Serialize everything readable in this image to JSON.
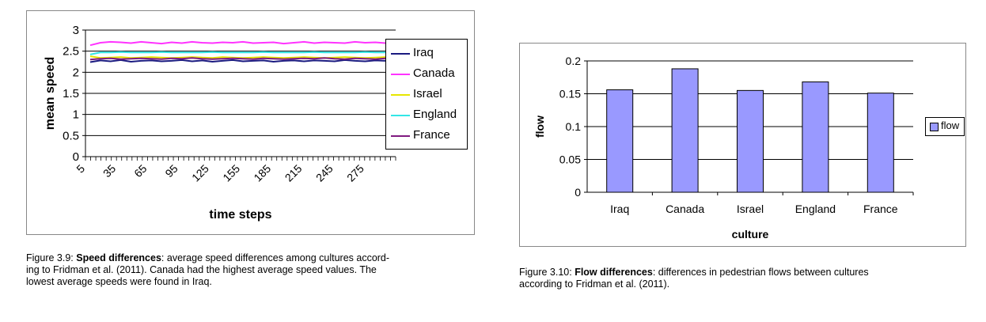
{
  "speed_caption": {
    "prefix": "Figure 3.9: ",
    "bold": "Speed differences",
    "line1": ": average speed differences among cultures accord-",
    "line2": "ing to Fridman et al. (2011).  Canada had the highest average speed values.  The",
    "line3": "lowest average speeds were found in Iraq."
  },
  "flow_caption": {
    "prefix": "Figure 3.10: ",
    "bold": "Flow differences",
    "line1": ":  differences in pedestrian flows between cultures",
    "line2": "according to Fridman et al. (2011)."
  },
  "chart_data": [
    {
      "type": "line",
      "title": "",
      "xlabel": "time steps",
      "ylabel": "mean speed",
      "ylim": [
        0,
        3
      ],
      "yticks": [
        "0",
        "0.5",
        "1",
        "1.5",
        "2",
        "2.5",
        "3"
      ],
      "xticks": [
        "5",
        "35",
        "65",
        "95",
        "125",
        "155",
        "185",
        "215",
        "245",
        "275"
      ],
      "xrange": [
        5,
        305
      ],
      "grid": "horizontal",
      "legend": "right",
      "series": [
        {
          "name": "Iraq",
          "color": "#1a1a80",
          "approx_mean": 2.27,
          "values": [
            2.24,
            2.28,
            2.26,
            2.29,
            2.25,
            2.27,
            2.28,
            2.26,
            2.27,
            2.29,
            2.26,
            2.28,
            2.25,
            2.27,
            2.29,
            2.26,
            2.27,
            2.28,
            2.25,
            2.27,
            2.28,
            2.26,
            2.28,
            2.27,
            2.26,
            2.29,
            2.27,
            2.26,
            2.28,
            2.27,
            2.26
          ]
        },
        {
          "name": "Canada",
          "color": "#ff33ff",
          "approx_mean": 2.69,
          "values": [
            2.64,
            2.7,
            2.72,
            2.71,
            2.69,
            2.72,
            2.7,
            2.68,
            2.71,
            2.69,
            2.72,
            2.7,
            2.69,
            2.71,
            2.7,
            2.72,
            2.69,
            2.7,
            2.71,
            2.68,
            2.7,
            2.72,
            2.69,
            2.71,
            2.7,
            2.69,
            2.72,
            2.7,
            2.71,
            2.69,
            2.7
          ]
        },
        {
          "name": "Israel",
          "color": "#e6e600",
          "approx_mean": 2.35,
          "values": [
            2.38,
            2.34,
            2.35,
            2.36,
            2.34,
            2.35,
            2.36,
            2.35,
            2.34,
            2.35,
            2.36,
            2.35,
            2.34,
            2.36,
            2.35,
            2.34,
            2.35,
            2.36,
            2.35,
            2.34,
            2.35,
            2.36,
            2.35,
            2.34,
            2.35,
            2.36,
            2.35,
            2.34,
            2.35,
            2.36,
            2.35
          ]
        },
        {
          "name": "England",
          "color": "#33e6e6",
          "approx_mean": 2.47,
          "values": [
            2.42,
            2.47,
            2.47,
            2.48,
            2.47,
            2.47,
            2.47,
            2.48,
            2.47,
            2.47,
            2.47,
            2.47,
            2.48,
            2.47,
            2.47,
            2.47,
            2.47,
            2.48,
            2.47,
            2.47,
            2.47,
            2.47,
            2.48,
            2.47,
            2.47,
            2.47,
            2.47,
            2.48,
            2.47,
            2.47,
            2.47
          ]
        },
        {
          "name": "France",
          "color": "#801a80",
          "approx_mean": 2.31,
          "values": [
            2.3,
            2.32,
            2.33,
            2.31,
            2.32,
            2.33,
            2.32,
            2.31,
            2.33,
            2.32,
            2.34,
            2.32,
            2.31,
            2.32,
            2.33,
            2.32,
            2.31,
            2.33,
            2.32,
            2.31,
            2.32,
            2.33,
            2.32,
            2.34,
            2.32,
            2.31,
            2.33,
            2.32,
            2.31,
            2.33,
            2.32
          ]
        }
      ]
    },
    {
      "type": "bar",
      "title": "",
      "xlabel": "culture",
      "ylabel": "flow",
      "ylim": [
        0,
        0.2
      ],
      "yticks": [
        "0",
        "0.05",
        "0.1",
        "0.15",
        "0.2"
      ],
      "categories": [
        "Iraq",
        "Canada",
        "Israel",
        "England",
        "France"
      ],
      "series": [
        {
          "name": "flow",
          "color": "#9999ff",
          "values": [
            0.156,
            0.188,
            0.155,
            0.168,
            0.151
          ]
        }
      ],
      "grid": "horizontal",
      "legend": "right"
    }
  ]
}
